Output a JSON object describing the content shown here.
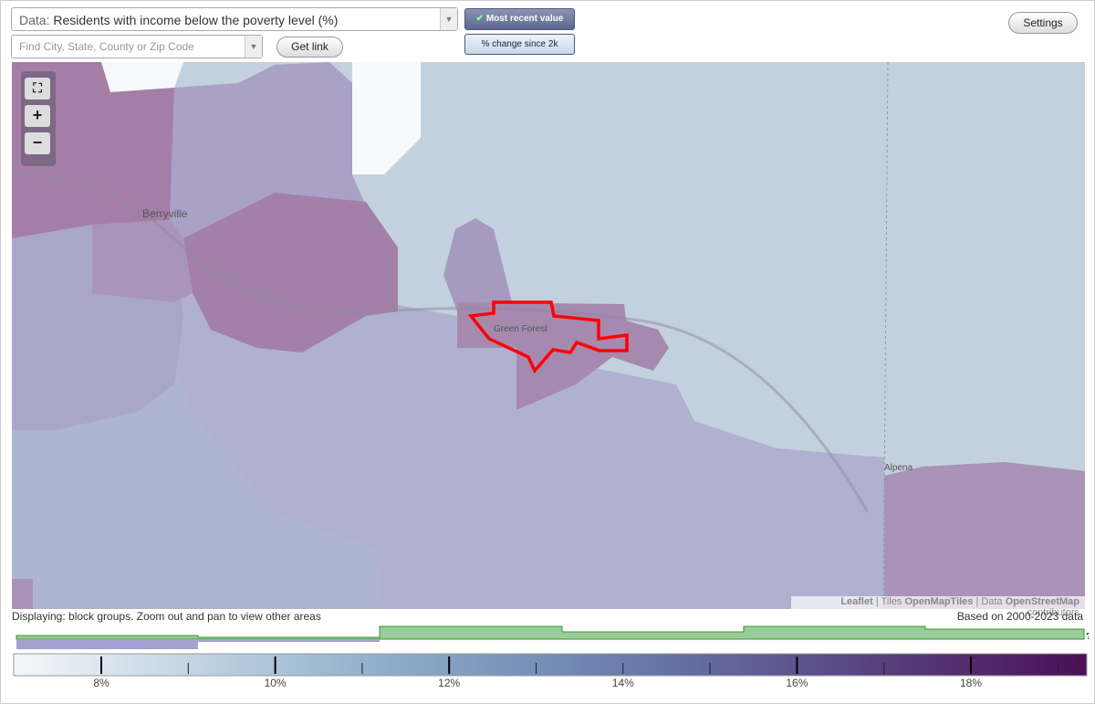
{
  "toolbar": {
    "data_prefix": "Data:",
    "data_value": "Residents with income below the poverty level (%)",
    "search_placeholder": "Find City, State, County or Zip Code",
    "get_link": "Get link",
    "most_recent": "Most recent value",
    "change": "% change since 2k",
    "settings": "Settings"
  },
  "map": {
    "places": [
      "Berryville",
      "Green Forest",
      "Alpena"
    ],
    "attribution": {
      "leaflet": "Leaflet",
      "tiles_prefix": "| Tiles",
      "tiles": "OpenMapTiles",
      "data_prefix": "| Data",
      "data": "OpenStreetMap",
      "suffix": "contributors"
    }
  },
  "footer": {
    "displaying": "Displaying: block groups. Zoom out and pan to view other areas",
    "based_on": "Based on 2000-2023 data",
    "help": "?"
  },
  "legend": {
    "labels": [
      "8%",
      "10%",
      "12%",
      "14%",
      "16%",
      "18%"
    ]
  }
}
